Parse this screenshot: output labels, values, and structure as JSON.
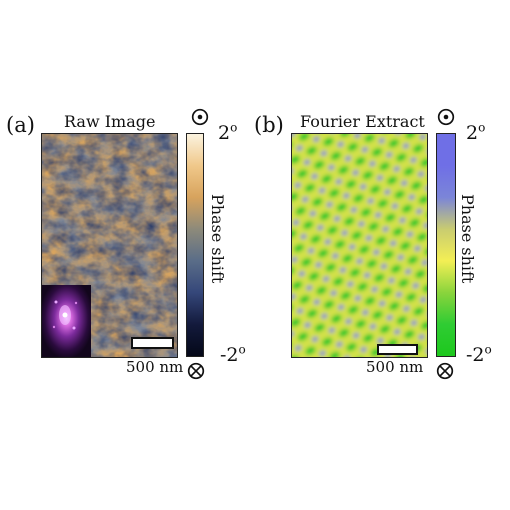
{
  "panels": [
    {
      "label": "(a)",
      "title": "Raw Image",
      "colorbar": {
        "top_tick": "2",
        "bottom_tick": "-2",
        "degree_mark": "o",
        "axis_label": "Phase shift",
        "gradient": [
          "#fbf3df",
          "#f0c88a",
          "#d7a35d",
          "#8d8a7a",
          "#5a6d88",
          "#35477a",
          "#131a3c",
          "#040818"
        ]
      },
      "scale_bar_text": "500 nm"
    },
    {
      "label": "(b)",
      "title": "Fourier Extract",
      "colorbar": {
        "top_tick": "2",
        "bottom_tick": "-2",
        "degree_mark": "o",
        "axis_label": "Phase shift",
        "gradient": [
          "#6f6fe6",
          "#6f6fe6",
          "#7b85d8",
          "#c9cc70",
          "#f3ef55",
          "#8ad43c",
          "#2fcc33",
          "#1dc81d"
        ]
      },
      "scale_bar_text": "500 nm"
    }
  ],
  "symbols": {
    "out_of_plane": "dot-circle-icon",
    "into_plane": "cross-circle-icon"
  }
}
